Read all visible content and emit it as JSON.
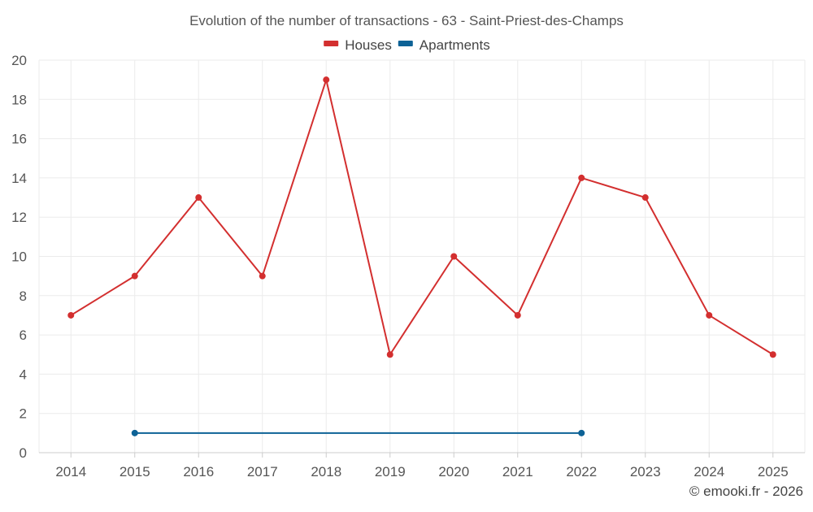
{
  "chart_data": {
    "type": "line",
    "title": "Evolution of the number of transactions - 63 - Saint-Priest-des-Champs",
    "categories": [
      "2014",
      "2015",
      "2016",
      "2017",
      "2018",
      "2019",
      "2020",
      "2021",
      "2022",
      "2023",
      "2024",
      "2025"
    ],
    "series": [
      {
        "name": "Houses",
        "color": "#d32f2f",
        "values": [
          7,
          9,
          13,
          9,
          19,
          5,
          10,
          7,
          14,
          13,
          7,
          5
        ]
      },
      {
        "name": "Apartments",
        "color": "#0d6296",
        "values": [
          null,
          1,
          null,
          null,
          null,
          null,
          null,
          null,
          1,
          null,
          null,
          null
        ]
      }
    ],
    "ylim": [
      0,
      20
    ],
    "yticks": [
      0,
      2,
      4,
      6,
      8,
      10,
      12,
      14,
      16,
      18,
      20
    ],
    "grid": true,
    "legend_position": "top-center",
    "credit": "© emooki.fr - 2026"
  }
}
